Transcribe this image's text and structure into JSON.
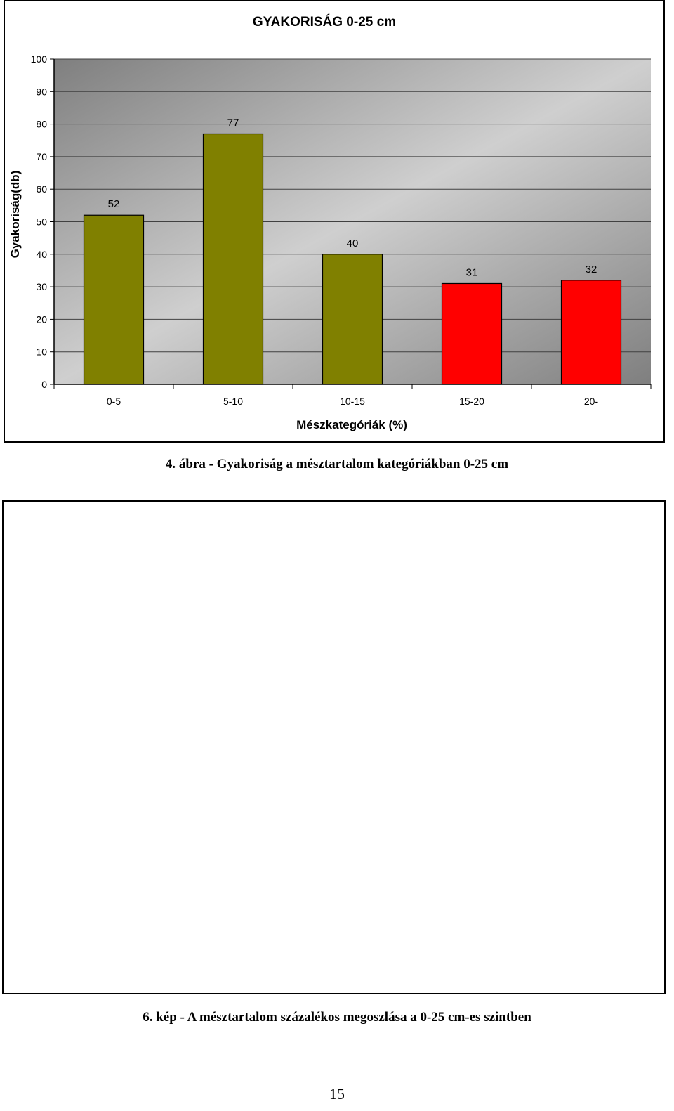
{
  "chart_data": {
    "type": "bar",
    "title": "GYAKORISÁG 0-25 cm",
    "xlabel": "Mészkategóriák (%)",
    "ylabel": "Gyakoriság(db)",
    "categories": [
      "0-5",
      "5-10",
      "10-15",
      "15-20",
      "20-"
    ],
    "values": [
      52,
      77,
      40,
      31,
      32
    ],
    "bar_colors": [
      "#808000",
      "#808000",
      "#808000",
      "#ff0000",
      "#ff0000"
    ],
    "ylim": [
      0,
      100
    ],
    "yticks": [
      0,
      10,
      20,
      30,
      40,
      50,
      60,
      70,
      80,
      90,
      100
    ],
    "grid": true,
    "data_labels": true,
    "legend": "none"
  },
  "captions": {
    "chart": "4. ábra - Gyakoriság a mésztartalom kategóriákban 0-25 cm",
    "image": "6. kép - A mésztartalom százalékos megoszlása a 0-25 cm-es szintben"
  },
  "page_number": "15"
}
